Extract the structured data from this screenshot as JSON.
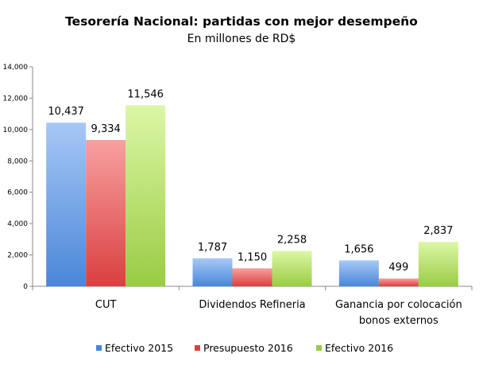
{
  "chart_data": {
    "type": "bar",
    "title": "Tesorería Nacional: partidas con mejor desempeño",
    "subtitle": "En millones de RD$",
    "categories": [
      [
        "CUT"
      ],
      [
        "Dividendos Refineria"
      ],
      [
        "Ganancia por colocación",
        "bonos externos"
      ]
    ],
    "series": [
      {
        "name": "Efectivo 2015",
        "values": [
          10437,
          1787,
          1656
        ],
        "labels": [
          "10,437",
          "1,787",
          "1,656"
        ],
        "color_light": "#a7c8f6",
        "color_dark": "#4a86d8"
      },
      {
        "name": "Presupuesto 2016",
        "values": [
          9334,
          1150,
          499
        ],
        "labels": [
          "9,334",
          "1,150",
          "499"
        ],
        "color_light": "#f8a0a0",
        "color_dark": "#d9403f"
      },
      {
        "name": "Efectivo 2016",
        "values": [
          11546,
          2258,
          2837
        ],
        "labels": [
          "11,546",
          "2,258",
          "2,837"
        ],
        "color_light": "#dcf7a6",
        "color_dark": "#99cc44"
      }
    ],
    "ylim": [
      0,
      14000
    ],
    "yticks": [
      "0",
      "2,000",
      "4,000",
      "6,000",
      "8,000",
      "10,000",
      "12,000",
      "14,000"
    ],
    "grid": false,
    "legend": "bottom"
  }
}
